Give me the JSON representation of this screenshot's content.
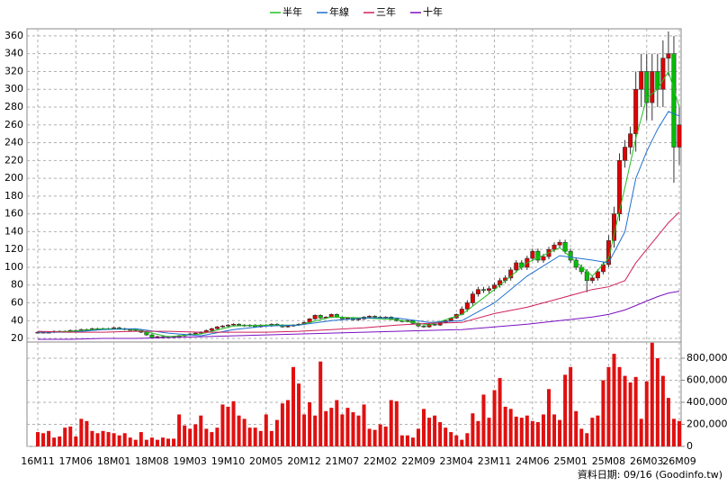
{
  "chart_data": {
    "type": "candlestick",
    "legend": "top",
    "grid": true,
    "up_color": "#e00000",
    "down_color": "#00c000",
    "categories": [
      "16M11",
      null,
      null,
      null,
      null,
      null,
      null,
      "17M06",
      null,
      null,
      null,
      null,
      null,
      null,
      "18M01",
      null,
      null,
      null,
      null,
      null,
      null,
      "18M08",
      null,
      null,
      null,
      null,
      null,
      null,
      "19M03",
      null,
      null,
      null,
      null,
      null,
      null,
      "19M10",
      null,
      null,
      null,
      null,
      null,
      null,
      "20M05",
      null,
      null,
      null,
      null,
      null,
      null,
      "20M12",
      null,
      null,
      null,
      null,
      null,
      null,
      "21M07",
      null,
      null,
      null,
      null,
      null,
      null,
      "22M02",
      null,
      null,
      null,
      null,
      null,
      null,
      "22M09",
      null,
      null,
      null,
      null,
      null,
      null,
      "23M04",
      null,
      null,
      null,
      null,
      null,
      null,
      "23M11",
      null,
      null,
      null,
      null,
      null,
      null,
      "24M06",
      null,
      null,
      null,
      null,
      null,
      null,
      "25M01",
      null,
      null,
      null,
      null,
      null,
      null,
      "25M08",
      null,
      null,
      null,
      null,
      null,
      null,
      "26M03",
      null,
      null,
      null,
      null,
      null,
      "26M09"
    ],
    "open": [
      27,
      27,
      27,
      27,
      28,
      28,
      28,
      29,
      29,
      30,
      30,
      31,
      31,
      31,
      31,
      32,
      31,
      30,
      30,
      29,
      27,
      24,
      21,
      22,
      21,
      22,
      22,
      23,
      24,
      25,
      26,
      27,
      29,
      31,
      33,
      34,
      35,
      36,
      35,
      34,
      35,
      33,
      35,
      34,
      36,
      35,
      33,
      34,
      35,
      36,
      38,
      42,
      46,
      43,
      44,
      47,
      44,
      42,
      43,
      41,
      42,
      44,
      45,
      44,
      43,
      44,
      42,
      40,
      39,
      40,
      37,
      34,
      33,
      36,
      35,
      38,
      40,
      43,
      47,
      53,
      60,
      70,
      75,
      74,
      76,
      80,
      85,
      88,
      97,
      105,
      100,
      110,
      118,
      108,
      112,
      120,
      125,
      128,
      118,
      108,
      100,
      95,
      85,
      88,
      95,
      103,
      130,
      160,
      220,
      235,
      250,
      300,
      320,
      285,
      320,
      300,
      335,
      340,
      235
    ],
    "high": [
      28,
      28,
      28,
      29,
      29,
      29,
      30,
      30,
      31,
      31,
      32,
      32,
      32,
      32,
      33,
      33,
      32,
      31,
      31,
      30,
      28,
      25,
      23,
      23,
      23,
      23,
      24,
      25,
      26,
      27,
      28,
      30,
      32,
      34,
      35,
      36,
      37,
      37,
      36,
      36,
      36,
      36,
      36,
      37,
      37,
      36,
      35,
      36,
      37,
      39,
      43,
      47,
      47,
      45,
      48,
      48,
      45,
      44,
      44,
      43,
      45,
      46,
      46,
      45,
      45,
      45,
      43,
      41,
      41,
      41,
      38,
      35,
      37,
      37,
      39,
      41,
      44,
      48,
      56,
      63,
      73,
      78,
      78,
      79,
      83,
      88,
      91,
      100,
      108,
      108,
      113,
      121,
      121,
      115,
      123,
      128,
      131,
      131,
      121,
      111,
      103,
      98,
      91,
      98,
      106,
      136,
      168,
      228,
      243,
      258,
      320,
      340,
      340,
      340,
      340,
      355,
      365,
      360,
      280
    ],
    "low": [
      26,
      26,
      26,
      26,
      27,
      27,
      27,
      28,
      28,
      29,
      29,
      30,
      30,
      30,
      30,
      30,
      29,
      29,
      28,
      26,
      23,
      20,
      20,
      20,
      20,
      21,
      21,
      22,
      23,
      24,
      25,
      26,
      28,
      30,
      32,
      33,
      34,
      34,
      33,
      33,
      32,
      32,
      33,
      33,
      34,
      32,
      32,
      33,
      34,
      35,
      37,
      41,
      42,
      42,
      43,
      43,
      41,
      41,
      40,
      40,
      41,
      43,
      43,
      42,
      42,
      41,
      39,
      38,
      38,
      36,
      33,
      32,
      32,
      34,
      34,
      37,
      39,
      42,
      46,
      50,
      57,
      67,
      71,
      71,
      73,
      77,
      82,
      85,
      94,
      97,
      97,
      107,
      105,
      105,
      109,
      117,
      122,
      115,
      105,
      97,
      92,
      72,
      82,
      85,
      92,
      100,
      122,
      152,
      212,
      227,
      230,
      280,
      265,
      265,
      280,
      280,
      315,
      195,
      215
    ],
    "close": [
      27,
      27,
      27,
      28,
      28,
      28,
      29,
      29,
      30,
      30,
      31,
      31,
      31,
      31,
      32,
      31,
      30,
      30,
      29,
      27,
      24,
      21,
      22,
      21,
      22,
      22,
      23,
      24,
      25,
      26,
      27,
      29,
      31,
      33,
      34,
      35,
      36,
      35,
      34,
      35,
      33,
      35,
      34,
      36,
      35,
      33,
      34,
      35,
      36,
      38,
      42,
      46,
      43,
      44,
      47,
      44,
      42,
      43,
      41,
      42,
      44,
      45,
      44,
      43,
      44,
      42,
      40,
      39,
      40,
      37,
      34,
      33,
      36,
      35,
      38,
      40,
      43,
      47,
      53,
      60,
      70,
      75,
      74,
      76,
      80,
      85,
      88,
      97,
      105,
      100,
      110,
      118,
      108,
      112,
      120,
      125,
      128,
      118,
      108,
      100,
      95,
      85,
      88,
      95,
      103,
      130,
      160,
      220,
      235,
      250,
      300,
      320,
      285,
      320,
      300,
      335,
      340,
      235,
      260
    ],
    "ylim": [
      16,
      368
    ],
    "yticks": [
      20,
      40,
      60,
      80,
      100,
      120,
      140,
      160,
      180,
      200,
      220,
      240,
      260,
      280,
      300,
      320,
      340,
      360
    ],
    "series": [
      {
        "name": "半年",
        "color": "#22c022",
        "x": [
          "16M11",
          "17M05",
          "17M11",
          "18M05",
          "18M11",
          "19M05",
          "19M11",
          "20M05",
          "20M11",
          "21M05",
          "21M11",
          "22M05",
          "22M11",
          "23M05",
          "23M11",
          "24M05",
          "24M11",
          "25M05",
          "25M08",
          "25M11",
          "26M01",
          "26M03",
          "26M05",
          "26M07",
          "26M09"
        ],
        "values": [
          27,
          28,
          31,
          30,
          22,
          25,
          34,
          35,
          35,
          44,
          43,
          41,
          35,
          47,
          75,
          105,
          122,
          90,
          110,
          190,
          245,
          290,
          300,
          320,
          280
        ]
      },
      {
        "name": "年線",
        "color": "#1f6fd0",
        "x": [
          "16M11",
          "17M05",
          "17M11",
          "18M05",
          "18M11",
          "19M05",
          "19M11",
          "20M05",
          "20M11",
          "21M05",
          "21M11",
          "22M05",
          "22M11",
          "23M05",
          "23M11",
          "24M05",
          "24M11",
          "25M05",
          "25M08",
          "25M11",
          "26M01",
          "26M03",
          "26M05",
          "26M07",
          "26M09"
        ],
        "values": [
          27,
          27,
          30,
          31,
          26,
          23,
          30,
          34,
          35,
          40,
          43,
          43,
          38,
          40,
          60,
          90,
          113,
          108,
          105,
          140,
          200,
          230,
          255,
          275,
          270
        ]
      },
      {
        "name": "三年",
        "color": "#d0205a",
        "x": [
          "16M11",
          "17M05",
          "17M11",
          "18M05",
          "18M11",
          "19M05",
          "19M11",
          "20M05",
          "20M11",
          "21M05",
          "21M11",
          "22M05",
          "22M11",
          "23M05",
          "23M11",
          "24M05",
          "24M11",
          "25M05",
          "25M08",
          "25M11",
          "26M01",
          "26M03",
          "26M05",
          "26M07",
          "26M09"
        ],
        "values": [
          28,
          27,
          27,
          28,
          28,
          27,
          27,
          27,
          28,
          30,
          32,
          35,
          37,
          38,
          48,
          55,
          65,
          75,
          78,
          85,
          105,
          120,
          135,
          150,
          162
        ]
      },
      {
        "name": "十年",
        "color": "#7a10c0",
        "x": [
          "16M11",
          "17M05",
          "17M11",
          "18M05",
          "18M11",
          "19M05",
          "19M11",
          "20M05",
          "20M11",
          "21M05",
          "21M11",
          "22M05",
          "22M11",
          "23M05",
          "23M11",
          "24M05",
          "24M11",
          "25M05",
          "25M08",
          "25M11",
          "26M01",
          "26M03",
          "26M05",
          "26M07",
          "26M09"
        ],
        "values": [
          19,
          19,
          20,
          20,
          21,
          22,
          23,
          24,
          25,
          26,
          27,
          28,
          29,
          30,
          33,
          36,
          40,
          44,
          47,
          52,
          57,
          62,
          67,
          71,
          73
        ]
      }
    ],
    "volume": {
      "color": "#e01010",
      "ylim": [
        0,
        947000
      ],
      "yticks": [
        0,
        {
          "value": 200000,
          "label": "200,000"
        },
        {
          "value": 400000,
          "label": "400,000"
        },
        {
          "value": 600000,
          "label": "600,000"
        },
        {
          "value": 800000,
          "label": "800,000"
        }
      ],
      "values": [
        130000,
        120000,
        140000,
        80000,
        90000,
        170000,
        180000,
        90000,
        250000,
        230000,
        140000,
        120000,
        140000,
        130000,
        120000,
        100000,
        120000,
        80000,
        60000,
        130000,
        60000,
        80000,
        60000,
        80000,
        70000,
        70000,
        290000,
        190000,
        160000,
        200000,
        280000,
        160000,
        130000,
        170000,
        380000,
        360000,
        410000,
        280000,
        250000,
        170000,
        170000,
        140000,
        290000,
        140000,
        240000,
        390000,
        420000,
        720000,
        570000,
        290000,
        400000,
        280000,
        770000,
        320000,
        350000,
        420000,
        290000,
        350000,
        310000,
        280000,
        380000,
        160000,
        150000,
        200000,
        180000,
        420000,
        410000,
        100000,
        100000,
        80000,
        160000,
        340000,
        260000,
        280000,
        220000,
        170000,
        130000,
        100000,
        60000,
        120000,
        300000,
        230000,
        470000,
        260000,
        510000,
        620000,
        360000,
        340000,
        270000,
        260000,
        280000,
        230000,
        220000,
        290000,
        520000,
        290000,
        240000,
        650000,
        720000,
        320000,
        160000,
        120000,
        260000,
        280000,
        600000,
        720000,
        840000,
        720000,
        640000,
        580000,
        630000,
        250000,
        590000,
        940000,
        800000,
        640000,
        440000,
        250000,
        230000
      ]
    }
  },
  "footer": "資料日期: 09/16 (Goodinfo.tw)"
}
